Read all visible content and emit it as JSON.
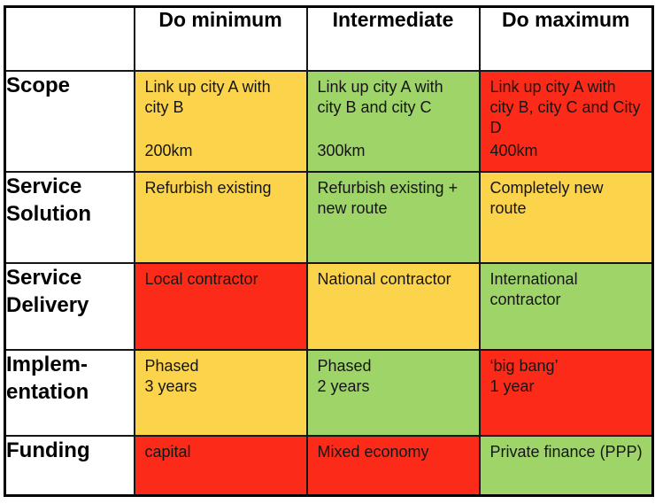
{
  "palette": {
    "yellow": "#fbd44c",
    "green": "#9fd469",
    "red": "#fc2a18",
    "border": "#000000",
    "text": "#151515",
    "white": "#ffffff"
  },
  "table": {
    "header": {
      "col0": "",
      "col1": "Do minimum",
      "col2": "Intermediate",
      "col3": "Do maximum"
    },
    "rows": [
      {
        "label": "Scope",
        "cells": [
          {
            "text": "Link up city A with city B",
            "footer": "200km",
            "color": "yellow"
          },
          {
            "text": "Link up city A with city B and city C",
            "footer": "300km",
            "color": "green"
          },
          {
            "text": "Link up city A with city B, city C and City D",
            "footer": "400km",
            "color": "red"
          }
        ]
      },
      {
        "label": "Service Solution",
        "cells": [
          {
            "text": "Refurbish existing",
            "color": "yellow"
          },
          {
            "text": "Refurbish existing + new route",
            "color": "green"
          },
          {
            "text": "Completely new route",
            "color": "yellow"
          }
        ]
      },
      {
        "label": "Service Delivery",
        "cells": [
          {
            "text": "Local contractor",
            "color": "red"
          },
          {
            "text": "National contractor",
            "color": "yellow"
          },
          {
            "text": "International contractor",
            "color": "green"
          }
        ]
      },
      {
        "label": "Implem-\nentation",
        "cells": [
          {
            "text": "Phased\n3 years",
            "color": "yellow"
          },
          {
            "text": "Phased\n2 years",
            "color": "green"
          },
          {
            "text": "‘big bang’\n1 year",
            "color": "red"
          }
        ]
      },
      {
        "label": "Funding",
        "cells": [
          {
            "text": "capital",
            "color": "red"
          },
          {
            "text": "Mixed economy",
            "color": "red"
          },
          {
            "text": "Private finance (PPP)",
            "color": "green"
          }
        ]
      }
    ]
  }
}
